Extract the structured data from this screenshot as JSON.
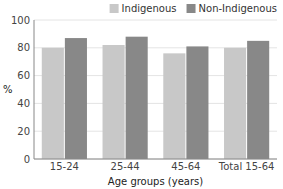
{
  "chart_data": {
    "type": "bar",
    "categories": [
      "15-24",
      "25-44",
      "45-64",
      "Total 15-64"
    ],
    "series": [
      {
        "name": "Indigenous",
        "color": "#c8c8c8",
        "values": [
          80,
          82,
          76,
          80
        ]
      },
      {
        "name": "Non-Indigenous",
        "color": "#888888",
        "values": [
          87,
          88,
          81,
          85
        ]
      }
    ],
    "xlabel": "Age groups (years)",
    "ylabel": "%",
    "ylim": [
      0,
      100
    ],
    "yticks": [
      0,
      20,
      40,
      60,
      80,
      100
    ],
    "grid": true,
    "legend": "upper right"
  }
}
